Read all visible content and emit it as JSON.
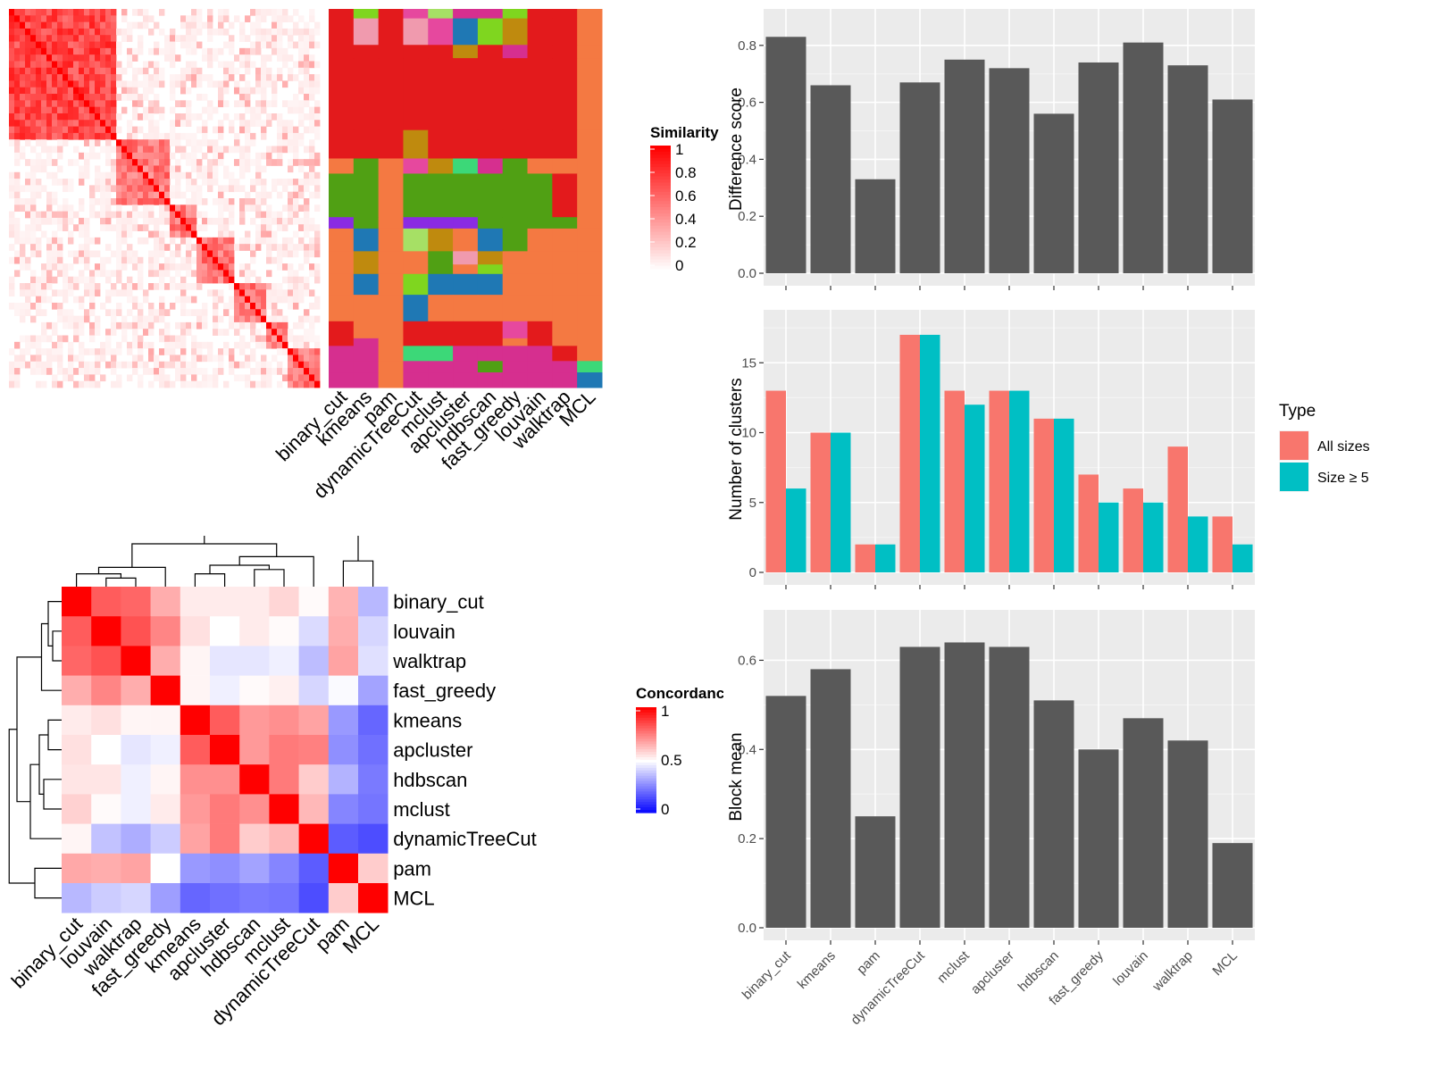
{
  "chart_data": [
    {
      "type": "heatmap",
      "panel": "similarity-and-cluster-labels",
      "methods": [
        "binary_cut",
        "kmeans",
        "pam",
        "dynamicTreeCut",
        "mclust",
        "apcluster",
        "hdbscan",
        "fast_greedy",
        "louvain",
        "walktrap",
        "MCL"
      ],
      "legend_title": "Similarity",
      "legend_ticks": [
        "1",
        "0.8",
        "0.6",
        "0.4",
        "0.2",
        "0"
      ],
      "legend_range": [
        0,
        1
      ],
      "colors": {
        "low": "#FFFFFF",
        "high": "#FF0000"
      }
    },
    {
      "type": "heatmap",
      "panel": "concordance",
      "rows": [
        "binary_cut",
        "louvain",
        "walktrap",
        "fast_greedy",
        "kmeans",
        "apcluster",
        "hdbscan",
        "mclust",
        "dynamicTreeCut",
        "pam",
        "MCL"
      ],
      "columns": [
        "binary_cut",
        "louvain",
        "walktrap",
        "fast_greedy",
        "kmeans",
        "apcluster",
        "hdbscan",
        "mclust",
        "dynamicTreeCut",
        "pam",
        "MCL"
      ],
      "values": [
        [
          1.0,
          0.82,
          0.8,
          0.66,
          0.54,
          0.54,
          0.54,
          0.58,
          0.51,
          0.65,
          0.36
        ],
        [
          0.82,
          1.0,
          0.84,
          0.74,
          0.56,
          0.5,
          0.54,
          0.51,
          0.43,
          0.66,
          0.42
        ],
        [
          0.8,
          0.84,
          1.0,
          0.66,
          0.52,
          0.45,
          0.45,
          0.47,
          0.37,
          0.68,
          0.44
        ],
        [
          0.66,
          0.74,
          0.66,
          1.0,
          0.52,
          0.47,
          0.51,
          0.53,
          0.42,
          0.49,
          0.32
        ],
        [
          0.54,
          0.56,
          0.52,
          0.52,
          1.0,
          0.82,
          0.7,
          0.72,
          0.68,
          0.3,
          0.2
        ],
        [
          0.56,
          0.5,
          0.45,
          0.47,
          0.82,
          1.0,
          0.7,
          0.76,
          0.75,
          0.28,
          0.22
        ],
        [
          0.55,
          0.55,
          0.47,
          0.52,
          0.72,
          0.72,
          1.0,
          0.76,
          0.6,
          0.35,
          0.24
        ],
        [
          0.59,
          0.51,
          0.47,
          0.54,
          0.7,
          0.76,
          0.72,
          1.0,
          0.64,
          0.26,
          0.23
        ],
        [
          0.52,
          0.38,
          0.34,
          0.4,
          0.68,
          0.76,
          0.6,
          0.64,
          1.0,
          0.18,
          0.15
        ],
        [
          0.67,
          0.66,
          0.68,
          0.5,
          0.3,
          0.28,
          0.32,
          0.26,
          0.18,
          1.0,
          0.6
        ],
        [
          0.36,
          0.4,
          0.42,
          0.31,
          0.2,
          0.22,
          0.24,
          0.23,
          0.15,
          0.6,
          1.0
        ]
      ],
      "legend_title": "Concordance",
      "legend_ticks": [
        "1",
        "0.5",
        "0"
      ],
      "legend_range": [
        0,
        1
      ],
      "colors": {
        "low": "#0000FF",
        "mid": "#FFFFFF",
        "high": "#FF0000"
      }
    },
    {
      "type": "bar",
      "panel": "difference-score",
      "categories": [
        "binary_cut",
        "kmeans",
        "pam",
        "dynamicTreeCut",
        "mclust",
        "apcluster",
        "hdbscan",
        "fast_greedy",
        "louvain",
        "walktrap",
        "MCL"
      ],
      "values": [
        0.83,
        0.66,
        0.33,
        0.67,
        0.75,
        0.72,
        0.56,
        0.74,
        0.81,
        0.73,
        0.61
      ],
      "ylabel": "Difference score",
      "ylim": [
        0,
        0.84
      ],
      "yticks": [
        0.0,
        0.2,
        0.4,
        0.6,
        0.8
      ],
      "color": "#595959"
    },
    {
      "type": "bar",
      "panel": "number-of-clusters",
      "categories": [
        "binary_cut",
        "kmeans",
        "pam",
        "dynamicTreeCut",
        "mclust",
        "apcluster",
        "hdbscan",
        "fast_greedy",
        "louvain",
        "walktrap",
        "MCL"
      ],
      "series": [
        {
          "name": "All sizes",
          "values": [
            13,
            10,
            2,
            17,
            13,
            13,
            11,
            7,
            6,
            9,
            4
          ],
          "color": "#F8766D"
        },
        {
          "name": "Size ≥ 5",
          "values": [
            6,
            10,
            2,
            17,
            12,
            13,
            11,
            5,
            5,
            4,
            2
          ],
          "color": "#00BFC4"
        }
      ],
      "ylabel": "Number of clusters",
      "ylim": [
        0,
        17
      ],
      "yticks": [
        0,
        5,
        10,
        15
      ],
      "legend_title": "Type",
      "legend_position": "right"
    },
    {
      "type": "bar",
      "panel": "block-mean",
      "categories": [
        "binary_cut",
        "kmeans",
        "pam",
        "dynamicTreeCut",
        "mclust",
        "apcluster",
        "hdbscan",
        "fast_greedy",
        "louvain",
        "walktrap",
        "MCL"
      ],
      "values": [
        0.52,
        0.58,
        0.25,
        0.63,
        0.64,
        0.63,
        0.51,
        0.4,
        0.47,
        0.42,
        0.19
      ],
      "ylabel": "Block mean",
      "ylim": [
        0,
        0.65
      ],
      "yticks": [
        0.0,
        0.2,
        0.4,
        0.6
      ],
      "color": "#595959"
    }
  ]
}
